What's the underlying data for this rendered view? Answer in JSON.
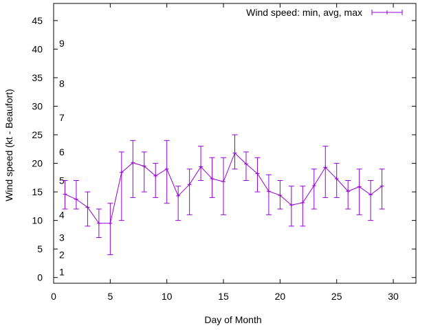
{
  "chart_data": {
    "type": "line",
    "title": "",
    "xlabel": "Day of Month",
    "ylabel": "Wind speed (kt - Beaufort)",
    "xlim": [
      0,
      32
    ],
    "ylim": [
      -1,
      48
    ],
    "x_ticks": [
      0,
      5,
      10,
      15,
      20,
      25,
      30
    ],
    "y_ticks": [
      0,
      5,
      10,
      15,
      20,
      25,
      30,
      35,
      40,
      45
    ],
    "grid": false,
    "legend": "top-right",
    "series": [
      {
        "name": "Wind speed: min, avg, max",
        "color": "#9400d3",
        "x": [
          1,
          2,
          3,
          4,
          5,
          6,
          7,
          8,
          9,
          10,
          11,
          12,
          13,
          14,
          15,
          16,
          17,
          18,
          19,
          20,
          21,
          22,
          23,
          24,
          25,
          26,
          27,
          28,
          29
        ],
        "avg": [
          14.6,
          13.7,
          12.3,
          9.5,
          9.5,
          18.4,
          20.1,
          19.5,
          17.8,
          19.0,
          14.3,
          16.3,
          19.4,
          17.3,
          16.8,
          21.8,
          19.9,
          18.2,
          15.1,
          14.4,
          12.7,
          13.1,
          16.1,
          19.3,
          17.3,
          15.1,
          15.9,
          14.5,
          16.0
        ],
        "min": [
          12,
          12,
          9,
          7,
          4,
          10,
          14,
          15,
          14,
          13,
          10,
          11,
          17,
          14,
          11,
          19,
          17,
          15,
          11,
          12,
          9,
          9,
          12,
          14,
          14,
          12,
          11,
          10,
          12
        ],
        "max": [
          17,
          17,
          15,
          12,
          13,
          22,
          24,
          22,
          20,
          24,
          16,
          19,
          23,
          21,
          21,
          25,
          22,
          21,
          18,
          17,
          16,
          16,
          19,
          23,
          20,
          17,
          19,
          17,
          19
        ]
      }
    ],
    "annotations": [
      {
        "text": "1",
        "y": 1
      },
      {
        "text": "2",
        "y": 4
      },
      {
        "text": "3",
        "y": 7
      },
      {
        "text": "4",
        "y": 11
      },
      {
        "text": "5",
        "y": 17
      },
      {
        "text": "6",
        "y": 22
      },
      {
        "text": "7",
        "y": 28
      },
      {
        "text": "8",
        "y": 34
      },
      {
        "text": "9",
        "y": 41
      }
    ]
  }
}
